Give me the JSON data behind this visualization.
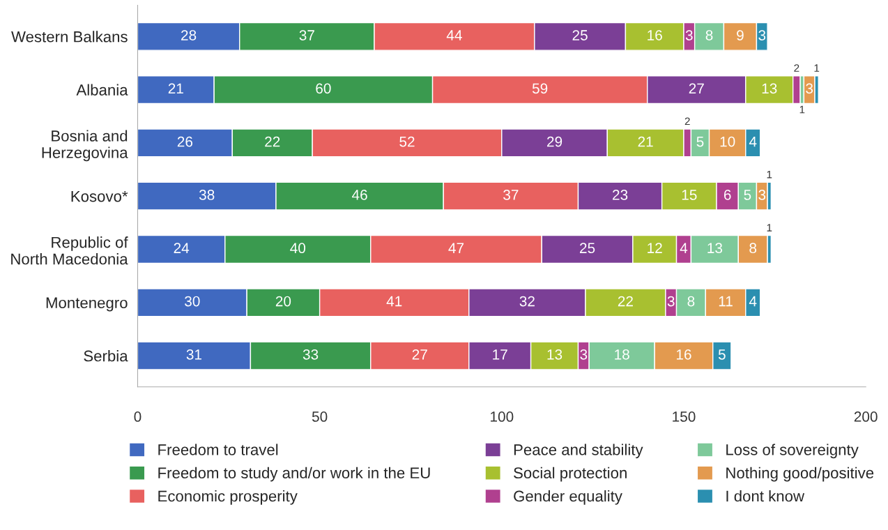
{
  "chart_data": {
    "type": "bar",
    "orientation": "horizontal",
    "stacked": true,
    "data_labels": true,
    "legend": "bottom",
    "grid": false,
    "categories": [
      "Western Balkans",
      "Albania",
      "Bosnia and\nHerzegovina",
      "Kosovo*",
      "Republic of\nNorth Macedonia",
      "Montenegro",
      "Serbia"
    ],
    "xlim": [
      0,
      200
    ],
    "xticks": [
      0,
      50,
      100,
      150,
      200
    ],
    "series": [
      {
        "name": "Freedom to travel",
        "color": "#4069c0",
        "values": [
          28,
          21,
          26,
          38,
          24,
          30,
          31
        ]
      },
      {
        "name": "Freedom to study and/or work in the EU",
        "color": "#3a9a4f",
        "values": [
          37,
          60,
          22,
          46,
          40,
          20,
          33
        ]
      },
      {
        "name": "Economic prosperity",
        "color": "#e8615f",
        "values": [
          44,
          59,
          52,
          37,
          47,
          41,
          27
        ]
      },
      {
        "name": "Peace and stability",
        "color": "#7b3f96",
        "values": [
          25,
          27,
          29,
          23,
          25,
          32,
          17
        ]
      },
      {
        "name": "Social protection",
        "color": "#a8c030",
        "values": [
          16,
          13,
          21,
          15,
          12,
          22,
          13
        ]
      },
      {
        "name": "Gender equality",
        "color": "#b0408f",
        "values": [
          3,
          2,
          2,
          6,
          4,
          3,
          3
        ]
      },
      {
        "name": "Loss of sovereignty",
        "color": "#7ec99a",
        "values": [
          8,
          1,
          5,
          5,
          13,
          8,
          18
        ]
      },
      {
        "name": "Nothing good/positive",
        "color": "#e39a4f",
        "values": [
          9,
          3,
          10,
          3,
          8,
          11,
          16
        ]
      },
      {
        "name": "I dont know",
        "color": "#2b8fb0",
        "values": [
          3,
          1,
          4,
          1,
          1,
          4,
          5
        ]
      }
    ]
  }
}
